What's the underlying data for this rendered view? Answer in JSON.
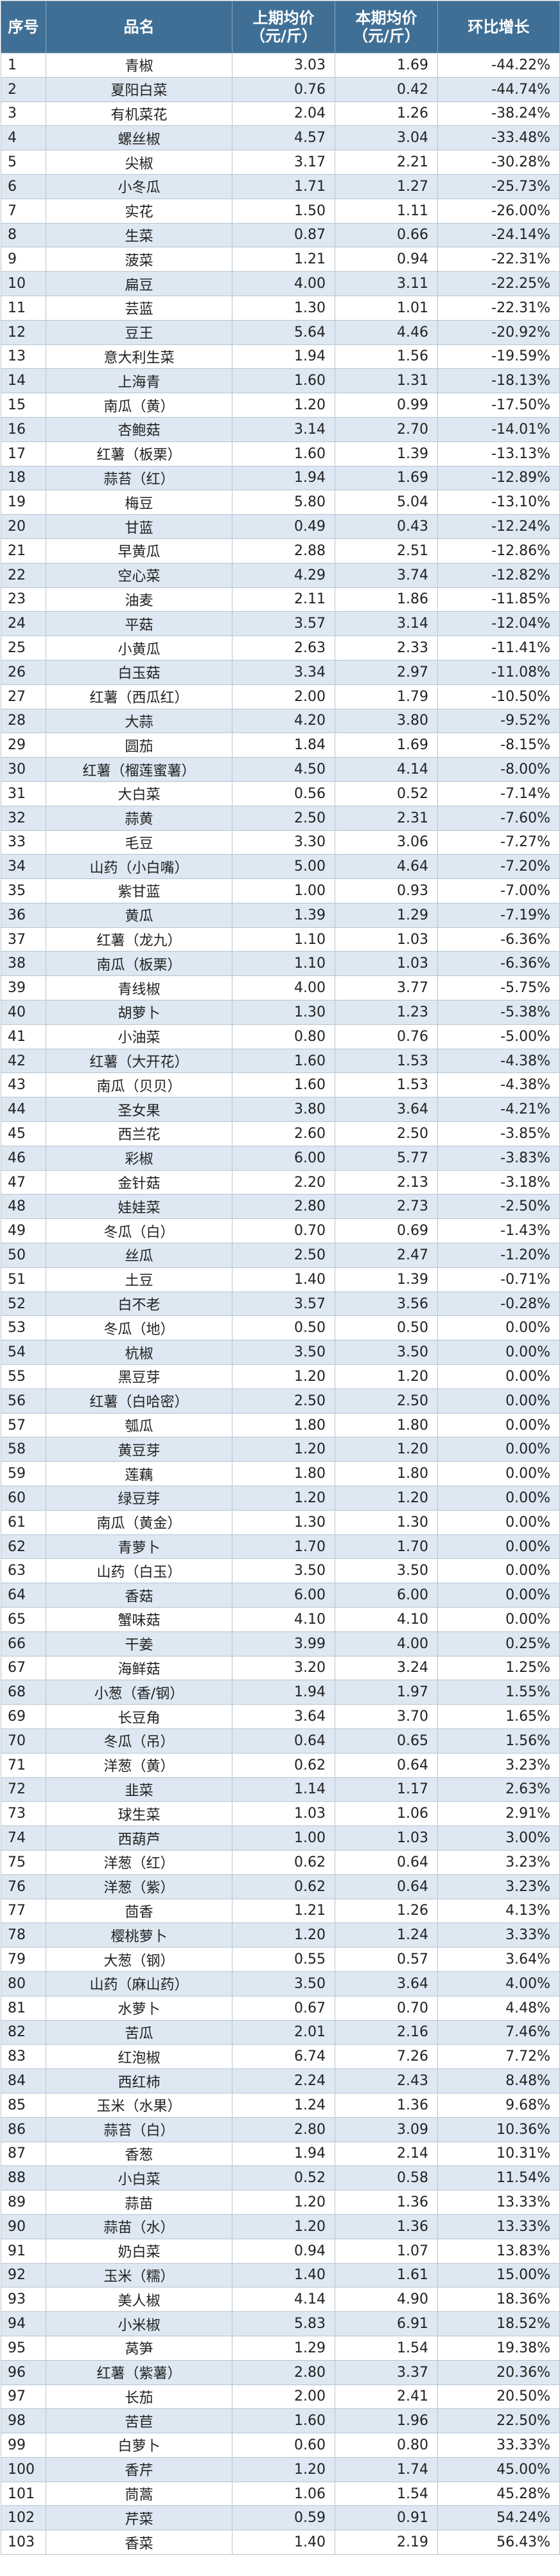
{
  "headers": {
    "no": "序号",
    "name": "品名",
    "prev": [
      "上期均价",
      "（元/斤）"
    ],
    "curr": [
      "本期均价",
      "（元/斤）"
    ],
    "growth": "环比增长"
  },
  "rows": [
    [
      "1",
      "青椒",
      "3.03",
      "1.69",
      "-44.22%"
    ],
    [
      "2",
      "夏阳白菜",
      "0.76",
      "0.42",
      "-44.74%"
    ],
    [
      "3",
      "有机菜花",
      "2.04",
      "1.26",
      "-38.24%"
    ],
    [
      "4",
      "螺丝椒",
      "4.57",
      "3.04",
      "-33.48%"
    ],
    [
      "5",
      "尖椒",
      "3.17",
      "2.21",
      "-30.28%"
    ],
    [
      "6",
      "小冬瓜",
      "1.71",
      "1.27",
      "-25.73%"
    ],
    [
      "7",
      "实花",
      "1.50",
      "1.11",
      "-26.00%"
    ],
    [
      "8",
      "生菜",
      "0.87",
      "0.66",
      "-24.14%"
    ],
    [
      "9",
      "菠菜",
      "1.21",
      "0.94",
      "-22.31%"
    ],
    [
      "10",
      "扁豆",
      "4.00",
      "3.11",
      "-22.25%"
    ],
    [
      "11",
      "芸蓝",
      "1.30",
      "1.01",
      "-22.31%"
    ],
    [
      "12",
      "豆王",
      "5.64",
      "4.46",
      "-20.92%"
    ],
    [
      "13",
      "意大利生菜",
      "1.94",
      "1.56",
      "-19.59%"
    ],
    [
      "14",
      "上海青",
      "1.60",
      "1.31",
      "-18.13%"
    ],
    [
      "15",
      "南瓜（黄）",
      "1.20",
      "0.99",
      "-17.50%"
    ],
    [
      "16",
      "杏鲍菇",
      "3.14",
      "2.70",
      "-14.01%"
    ],
    [
      "17",
      "红薯（板栗）",
      "1.60",
      "1.39",
      "-13.13%"
    ],
    [
      "18",
      "蒜苔（红）",
      "1.94",
      "1.69",
      "-12.89%"
    ],
    [
      "19",
      "梅豆",
      "5.80",
      "5.04",
      "-13.10%"
    ],
    [
      "20",
      "甘蓝",
      "0.49",
      "0.43",
      "-12.24%"
    ],
    [
      "21",
      "早黄瓜",
      "2.88",
      "2.51",
      "-12.86%"
    ],
    [
      "22",
      "空心菜",
      "4.29",
      "3.74",
      "-12.82%"
    ],
    [
      "23",
      "油麦",
      "2.11",
      "1.86",
      "-11.85%"
    ],
    [
      "24",
      "平菇",
      "3.57",
      "3.14",
      "-12.04%"
    ],
    [
      "25",
      "小黄瓜",
      "2.63",
      "2.33",
      "-11.41%"
    ],
    [
      "26",
      "白玉菇",
      "3.34",
      "2.97",
      "-11.08%"
    ],
    [
      "27",
      "红薯（西瓜红）",
      "2.00",
      "1.79",
      "-10.50%"
    ],
    [
      "28",
      "大蒜",
      "4.20",
      "3.80",
      "-9.52%"
    ],
    [
      "29",
      "圆茄",
      "1.84",
      "1.69",
      "-8.15%"
    ],
    [
      "30",
      "红薯（榴莲蜜薯）",
      "4.50",
      "4.14",
      "-8.00%"
    ],
    [
      "31",
      "大白菜",
      "0.56",
      "0.52",
      "-7.14%"
    ],
    [
      "32",
      "蒜黄",
      "2.50",
      "2.31",
      "-7.60%"
    ],
    [
      "33",
      "毛豆",
      "3.30",
      "3.06",
      "-7.27%"
    ],
    [
      "34",
      "山药（小白嘴）",
      "5.00",
      "4.64",
      "-7.20%"
    ],
    [
      "35",
      "紫甘蓝",
      "1.00",
      "0.93",
      "-7.00%"
    ],
    [
      "36",
      "黄瓜",
      "1.39",
      "1.29",
      "-7.19%"
    ],
    [
      "37",
      "红薯（龙九）",
      "1.10",
      "1.03",
      "-6.36%"
    ],
    [
      "38",
      "南瓜（板栗）",
      "1.10",
      "1.03",
      "-6.36%"
    ],
    [
      "39",
      "青线椒",
      "4.00",
      "3.77",
      "-5.75%"
    ],
    [
      "40",
      "胡萝卜",
      "1.30",
      "1.23",
      "-5.38%"
    ],
    [
      "41",
      "小油菜",
      "0.80",
      "0.76",
      "-5.00%"
    ],
    [
      "42",
      "红薯（大开花）",
      "1.60",
      "1.53",
      "-4.38%"
    ],
    [
      "43",
      "南瓜（贝贝）",
      "1.60",
      "1.53",
      "-4.38%"
    ],
    [
      "44",
      "圣女果",
      "3.80",
      "3.64",
      "-4.21%"
    ],
    [
      "45",
      "西兰花",
      "2.60",
      "2.50",
      "-3.85%"
    ],
    [
      "46",
      "彩椒",
      "6.00",
      "5.77",
      "-3.83%"
    ],
    [
      "47",
      "金针菇",
      "2.20",
      "2.13",
      "-3.18%"
    ],
    [
      "48",
      "娃娃菜",
      "2.80",
      "2.73",
      "-2.50%"
    ],
    [
      "49",
      "冬瓜（白）",
      "0.70",
      "0.69",
      "-1.43%"
    ],
    [
      "50",
      "丝瓜",
      "2.50",
      "2.47",
      "-1.20%"
    ],
    [
      "51",
      "土豆",
      "1.40",
      "1.39",
      "-0.71%"
    ],
    [
      "52",
      "白不老",
      "3.57",
      "3.56",
      "-0.28%"
    ],
    [
      "53",
      "冬瓜（地）",
      "0.50",
      "0.50",
      "0.00%"
    ],
    [
      "54",
      "杭椒",
      "3.50",
      "3.50",
      "0.00%"
    ],
    [
      "55",
      "黑豆芽",
      "1.20",
      "1.20",
      "0.00%"
    ],
    [
      "56",
      "红薯（白哈密）",
      "2.50",
      "2.50",
      "0.00%"
    ],
    [
      "57",
      "瓠瓜",
      "1.80",
      "1.80",
      "0.00%"
    ],
    [
      "58",
      "黄豆芽",
      "1.20",
      "1.20",
      "0.00%"
    ],
    [
      "59",
      "莲藕",
      "1.80",
      "1.80",
      "0.00%"
    ],
    [
      "60",
      "绿豆芽",
      "1.20",
      "1.20",
      "0.00%"
    ],
    [
      "61",
      "南瓜（黄金）",
      "1.30",
      "1.30",
      "0.00%"
    ],
    [
      "62",
      "青萝卜",
      "1.70",
      "1.70",
      "0.00%"
    ],
    [
      "63",
      "山药（白玉）",
      "3.50",
      "3.50",
      "0.00%"
    ],
    [
      "64",
      "香菇",
      "6.00",
      "6.00",
      "0.00%"
    ],
    [
      "65",
      "蟹味菇",
      "4.10",
      "4.10",
      "0.00%"
    ],
    [
      "66",
      "干姜",
      "3.99",
      "4.00",
      "0.25%"
    ],
    [
      "67",
      "海鲜菇",
      "3.20",
      "3.24",
      "1.25%"
    ],
    [
      "68",
      "小葱（香/钢）",
      "1.94",
      "1.97",
      "1.55%"
    ],
    [
      "69",
      "长豆角",
      "3.64",
      "3.70",
      "1.65%"
    ],
    [
      "70",
      "冬瓜（吊）",
      "0.64",
      "0.65",
      "1.56%"
    ],
    [
      "71",
      "洋葱（黄）",
      "0.62",
      "0.64",
      "3.23%"
    ],
    [
      "72",
      "韭菜",
      "1.14",
      "1.17",
      "2.63%"
    ],
    [
      "73",
      "球生菜",
      "1.03",
      "1.06",
      "2.91%"
    ],
    [
      "74",
      "西葫芦",
      "1.00",
      "1.03",
      "3.00%"
    ],
    [
      "75",
      "洋葱（红）",
      "0.62",
      "0.64",
      "3.23%"
    ],
    [
      "76",
      "洋葱（紫）",
      "0.62",
      "0.64",
      "3.23%"
    ],
    [
      "77",
      "茴香",
      "1.21",
      "1.26",
      "4.13%"
    ],
    [
      "78",
      "樱桃萝卜",
      "1.20",
      "1.24",
      "3.33%"
    ],
    [
      "79",
      "大葱（钢）",
      "0.55",
      "0.57",
      "3.64%"
    ],
    [
      "80",
      "山药（麻山药）",
      "3.50",
      "3.64",
      "4.00%"
    ],
    [
      "81",
      "水萝卜",
      "0.67",
      "0.70",
      "4.48%"
    ],
    [
      "82",
      "苦瓜",
      "2.01",
      "2.16",
      "7.46%"
    ],
    [
      "83",
      "红泡椒",
      "6.74",
      "7.26",
      "7.72%"
    ],
    [
      "84",
      "西红柿",
      "2.24",
      "2.43",
      "8.48%"
    ],
    [
      "85",
      "玉米（水果）",
      "1.24",
      "1.36",
      "9.68%"
    ],
    [
      "86",
      "蒜苔（白）",
      "2.80",
      "3.09",
      "10.36%"
    ],
    [
      "87",
      "香葱",
      "1.94",
      "2.14",
      "10.31%"
    ],
    [
      "88",
      "小白菜",
      "0.52",
      "0.58",
      "11.54%"
    ],
    [
      "89",
      "蒜苗",
      "1.20",
      "1.36",
      "13.33%"
    ],
    [
      "90",
      "蒜苗（水）",
      "1.20",
      "1.36",
      "13.33%"
    ],
    [
      "91",
      "奶白菜",
      "0.94",
      "1.07",
      "13.83%"
    ],
    [
      "92",
      "玉米（糯）",
      "1.40",
      "1.61",
      "15.00%"
    ],
    [
      "93",
      "美人椒",
      "4.14",
      "4.90",
      "18.36%"
    ],
    [
      "94",
      "小米椒",
      "5.83",
      "6.91",
      "18.52%"
    ],
    [
      "95",
      "莴笋",
      "1.29",
      "1.54",
      "19.38%"
    ],
    [
      "96",
      "红薯（紫薯）",
      "2.80",
      "3.37",
      "20.36%"
    ],
    [
      "97",
      "长茄",
      "2.00",
      "2.41",
      "20.50%"
    ],
    [
      "98",
      "苦苣",
      "1.60",
      "1.96",
      "22.50%"
    ],
    [
      "99",
      "白萝卜",
      "0.60",
      "0.80",
      "33.33%"
    ],
    [
      "100",
      "香芹",
      "1.20",
      "1.74",
      "45.00%"
    ],
    [
      "101",
      "茼蒿",
      "1.06",
      "1.54",
      "45.28%"
    ],
    [
      "102",
      "芹菜",
      "0.59",
      "0.91",
      "54.24%"
    ],
    [
      "103",
      "香菜",
      "1.40",
      "2.19",
      "56.43%"
    ]
  ]
}
